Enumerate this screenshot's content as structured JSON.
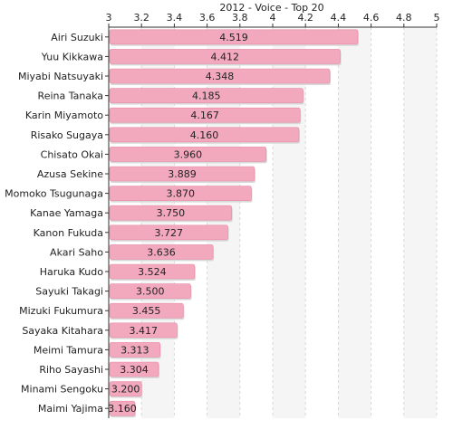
{
  "chart_data": {
    "type": "bar",
    "orientation": "horizontal",
    "title": "2012 - Voice - Top 20",
    "xlabel": "",
    "ylabel": "",
    "xlim": [
      3,
      5
    ],
    "x_ticks": [
      "3",
      "3.2",
      "3.4",
      "3.6",
      "3.8",
      "4",
      "4.2",
      "4.4",
      "4.6",
      "4.8",
      "5"
    ],
    "x_axis_position": "top",
    "grid": "vertical dashed",
    "alternating_bands": true,
    "bar_color": "#f2a9be",
    "bar_edge_color": "#e88aa6",
    "band_color": "#f5f5f5",
    "grid_color": "#d8d8d8",
    "categories": [
      "Airi Suzuki",
      "Yuu Kikkawa",
      "Miyabi Natsuyaki",
      "Reina Tanaka",
      "Karin Miyamoto",
      "Risako Sugaya",
      "Chisato Okai",
      "Azusa Sekine",
      "Momoko Tsugunaga",
      "Kanae Yamaga",
      "Kanon Fukuda",
      "Akari Saho",
      "Haruka Kudo",
      "Sayuki Takagi",
      "Mizuki Fukumura",
      "Sayaka Kitahara",
      "Meimi Tamura",
      "Riho Sayashi",
      "Minami Sengoku",
      "Maimi Yajima"
    ],
    "values": [
      4.519,
      4.412,
      4.348,
      4.185,
      4.167,
      4.16,
      3.96,
      3.889,
      3.87,
      3.75,
      3.727,
      3.636,
      3.524,
      3.5,
      3.455,
      3.417,
      3.313,
      3.304,
      3.2,
      3.16
    ],
    "value_labels": [
      "4.519",
      "4.412",
      "4.348",
      "4.185",
      "4.167",
      "4.160",
      "3.960",
      "3.889",
      "3.870",
      "3.750",
      "3.727",
      "3.636",
      "3.524",
      "3.500",
      "3.455",
      "3.417",
      "3.313",
      "3.304",
      "3.200",
      "3.160"
    ]
  }
}
